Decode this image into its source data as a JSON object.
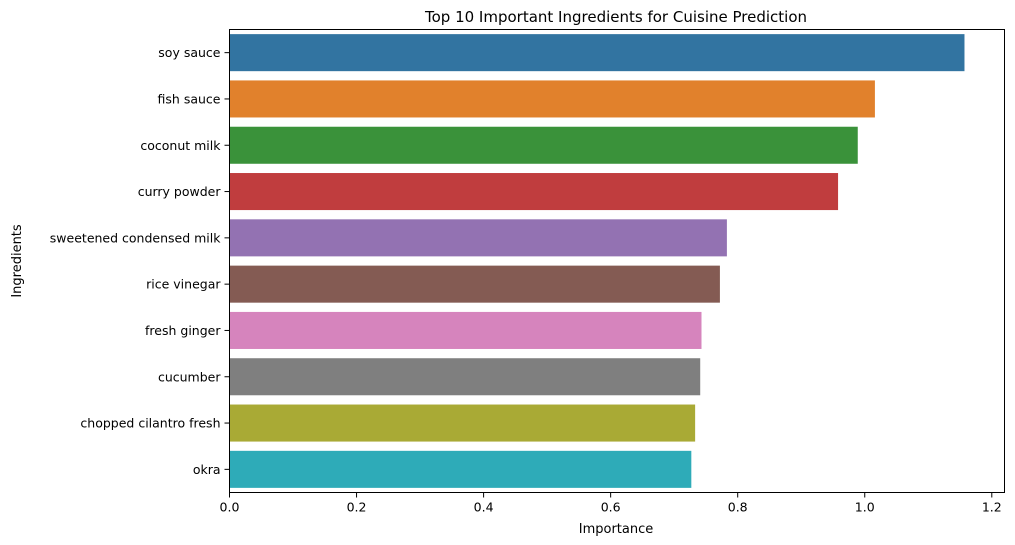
{
  "chart_data": {
    "type": "bar",
    "orientation": "horizontal",
    "title": "Top 10 Important Ingredients for Cuisine Prediction",
    "xlabel": "Importance",
    "ylabel": "Ingredients",
    "xlim": [
      0,
      1.22
    ],
    "xticks": [
      "0.0",
      "0.2",
      "0.4",
      "0.6",
      "0.8",
      "1.0",
      "1.2"
    ],
    "categories": [
      "soy sauce",
      "fish sauce",
      "coconut milk",
      "curry powder",
      "sweetened condensed milk",
      "rice vinegar",
      "fresh ginger",
      "cucumber",
      "chopped cilantro fresh",
      "okra"
    ],
    "values": [
      1.157,
      1.016,
      0.989,
      0.958,
      0.783,
      0.772,
      0.743,
      0.741,
      0.733,
      0.727
    ],
    "colors": [
      "#3274a1",
      "#e1812c",
      "#3a923a",
      "#c03d3e",
      "#9372b2",
      "#845b53",
      "#d684bd",
      "#7f7f7f",
      "#a9aa35",
      "#2eabb8"
    ],
    "grid": false,
    "legend": "none"
  }
}
